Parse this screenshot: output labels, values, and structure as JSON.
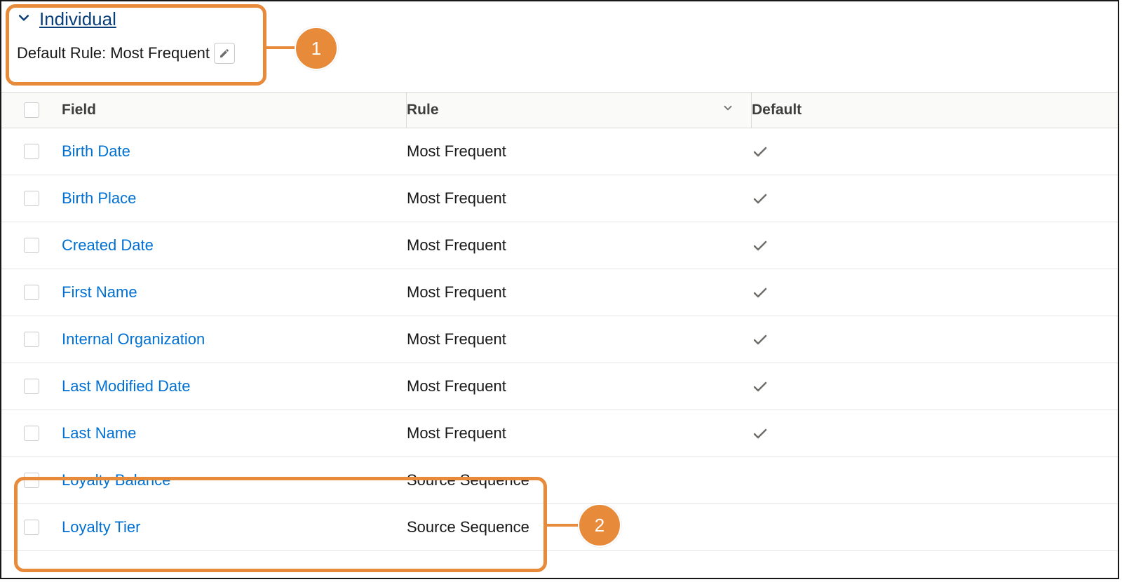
{
  "colors": {
    "callout": "#e78b3b",
    "link_title": "#0a3f7a",
    "link_field": "#0070d2",
    "header_bg": "#fafaf9",
    "border": "#dddbda",
    "row_border": "#e5e5e5",
    "checkbox_border": "#c9c9c9",
    "text": "#181818",
    "header_text": "#3e3e3c",
    "check_icon": "#706e6b"
  },
  "section": {
    "title": "Individual",
    "default_rule_label": "Default Rule:",
    "default_rule_value": "Most Frequent"
  },
  "table": {
    "columns": {
      "field": "Field",
      "rule": "Rule",
      "default": "Default"
    },
    "rows": [
      {
        "field": "Birth Date",
        "rule": "Most Frequent",
        "default": true
      },
      {
        "field": "Birth Place",
        "rule": "Most Frequent",
        "default": true
      },
      {
        "field": "Created Date",
        "rule": "Most Frequent",
        "default": true
      },
      {
        "field": "First Name",
        "rule": "Most Frequent",
        "default": true
      },
      {
        "field": "Internal Organization",
        "rule": "Most Frequent",
        "default": true
      },
      {
        "field": "Last Modified Date",
        "rule": "Most Frequent",
        "default": true
      },
      {
        "field": "Last Name",
        "rule": "Most Frequent",
        "default": true
      },
      {
        "field": "Loyalty Balance",
        "rule": "Source Sequence",
        "default": false
      },
      {
        "field": "Loyalty Tier",
        "rule": "Source Sequence",
        "default": false
      }
    ]
  },
  "callouts": {
    "one": "1",
    "two": "2"
  }
}
